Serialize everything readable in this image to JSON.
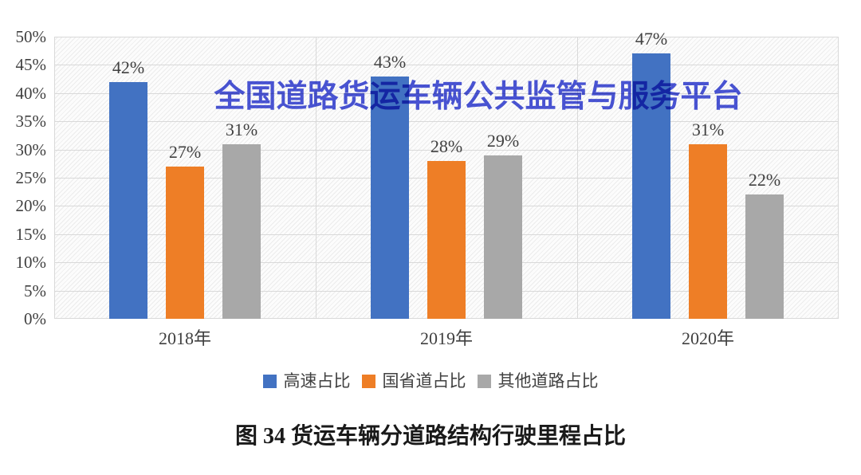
{
  "watermark": {
    "text": "全国道路货运车辆公共监管与服务平台",
    "color": "#3A46D4"
  },
  "caption": {
    "text": "图 34 货运车辆分道路结构行驶里程占比"
  },
  "colors": {
    "blue": "#4272C2",
    "orange": "#EE7E26",
    "gray": "#A8A8A8",
    "grid": "#D9D9D9",
    "axis_text": "#404040"
  },
  "chart_data": {
    "type": "bar",
    "title": "",
    "xlabel": "",
    "ylabel": "",
    "categories": [
      "2018年",
      "2019年",
      "2020年"
    ],
    "series": [
      {
        "name": "高速占比",
        "color": "#4272C2",
        "values": [
          42,
          43,
          47
        ]
      },
      {
        "name": "国省道占比",
        "color": "#EE7E26",
        "values": [
          27,
          28,
          31
        ]
      },
      {
        "name": "其他道路占比",
        "color": "#A8A8A8",
        "values": [
          31,
          29,
          22
        ]
      }
    ],
    "value_label_suffix": "%",
    "y_ticks": [
      "0%",
      "5%",
      "10%",
      "15%",
      "20%",
      "25%",
      "30%",
      "35%",
      "40%",
      "45%",
      "50%"
    ],
    "ylim": [
      0,
      50
    ],
    "y_tick_step": 5,
    "grid": true,
    "vertical_category_gridlines": true,
    "legend_position": "bottom"
  }
}
